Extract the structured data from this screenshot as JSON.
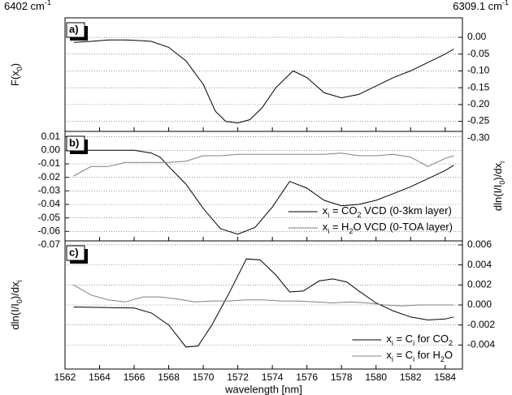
{
  "chart_data": [
    {
      "type": "line",
      "panel_label": "a)",
      "top_left_label": [
        {
          "t": "6402 cm"
        },
        {
          "t": "-1",
          "sup": true
        }
      ],
      "top_right_label": [
        {
          "t": "6309.1 cm"
        },
        {
          "t": "-1",
          "sup": true
        }
      ],
      "ylabel": [
        {
          "t": "F(x"
        },
        {
          "t": "0",
          "sub": true
        },
        {
          "t": ")"
        }
      ],
      "ylabel_side": "left",
      "ytick_side": "right",
      "xlim": [
        1562,
        1585
      ],
      "ylim": [
        -0.28,
        0.058
      ],
      "yticks": [
        {
          "value": 0,
          "label": "0.00"
        },
        {
          "value": -0.05,
          "label": "-0.05"
        },
        {
          "value": -0.1,
          "label": "-0.10"
        },
        {
          "value": -0.15,
          "label": "-0.15"
        },
        {
          "value": -0.2,
          "label": "-0.20"
        },
        {
          "value": -0.25,
          "label": "-0.25"
        },
        {
          "value": -0.3,
          "label": "-0.30"
        }
      ],
      "grid": true,
      "series": [
        {
          "color": "#000000",
          "x": [
            1562.5,
            1563.5,
            1564.5,
            1565.5,
            1566.5,
            1567,
            1568,
            1569,
            1570,
            1570.7,
            1571.3,
            1572,
            1572.7,
            1573.4,
            1574.2,
            1575.2,
            1576,
            1577,
            1578,
            1579,
            1580,
            1581,
            1582,
            1583,
            1584,
            1584.5
          ],
          "values": [
            -0.015,
            -0.012,
            -0.008,
            -0.008,
            -0.01,
            -0.012,
            -0.03,
            -0.07,
            -0.14,
            -0.22,
            -0.25,
            -0.255,
            -0.245,
            -0.21,
            -0.15,
            -0.1,
            -0.12,
            -0.165,
            -0.18,
            -0.17,
            -0.145,
            -0.12,
            -0.1,
            -0.075,
            -0.05,
            -0.035
          ]
        }
      ]
    },
    {
      "type": "line",
      "panel_label": "b)",
      "ylabel": [
        {
          "t": "dln(I/I"
        },
        {
          "t": "0",
          "sub": true
        },
        {
          "t": ")/dx"
        },
        {
          "t": "i",
          "sub": true
        }
      ],
      "ylabel_side": "right",
      "ytick_side": "left",
      "xlim": [
        1562,
        1585
      ],
      "ylim": [
        -0.067,
        0.014
      ],
      "yticks": [
        {
          "value": 0.01,
          "label": "0.01"
        },
        {
          "value": 0,
          "label": "0.00"
        },
        {
          "value": -0.01,
          "label": "-0.01"
        },
        {
          "value": -0.02,
          "label": "-0.02"
        },
        {
          "value": -0.03,
          "label": "-0.03"
        },
        {
          "value": -0.04,
          "label": "-0.04"
        },
        {
          "value": -0.05,
          "label": "-0.05"
        },
        {
          "value": -0.06,
          "label": "-0.06"
        },
        {
          "value": -0.07,
          "label": "-0.07"
        }
      ],
      "grid": true,
      "legend": "lower right",
      "series": [
        {
          "name": [
            {
              "t": "x"
            },
            {
              "t": "i",
              "sub": true
            },
            {
              "t": " = CO"
            },
            {
              "t": "2",
              "sub": true
            },
            {
              "t": " VCD (0-3km layer)"
            }
          ],
          "color": "#000000",
          "x": [
            1562.5,
            1566,
            1567,
            1567.5,
            1568,
            1569,
            1570,
            1571,
            1572,
            1573,
            1574,
            1575,
            1576,
            1577,
            1578,
            1579,
            1580,
            1581,
            1582,
            1583,
            1584,
            1584.5
          ],
          "values": [
            0,
            0,
            -0.002,
            -0.005,
            -0.012,
            -0.025,
            -0.043,
            -0.058,
            -0.062,
            -0.057,
            -0.042,
            -0.023,
            -0.028,
            -0.037,
            -0.041,
            -0.04,
            -0.037,
            -0.032,
            -0.027,
            -0.021,
            -0.015,
            -0.011
          ]
        },
        {
          "name": [
            {
              "t": "x"
            },
            {
              "t": "i",
              "sub": true
            },
            {
              "t": " = H"
            },
            {
              "t": "2",
              "sub": true
            },
            {
              "t": "O VCD (0-TOA layer)"
            }
          ],
          "color": "#808080",
          "x": [
            1562.5,
            1563.5,
            1564.5,
            1565.5,
            1567,
            1568,
            1569,
            1570,
            1571,
            1572,
            1573,
            1574,
            1575,
            1576,
            1577,
            1578,
            1579,
            1580,
            1581,
            1582,
            1583,
            1584,
            1584.5
          ],
          "values": [
            -0.019,
            -0.012,
            -0.012,
            -0.009,
            -0.009,
            -0.009,
            -0.008,
            -0.004,
            -0.004,
            -0.003,
            -0.003,
            -0.003,
            -0.003,
            -0.003,
            -0.003,
            -0.002,
            -0.004,
            -0.004,
            -0.003,
            -0.005,
            -0.012,
            -0.006,
            -0.004
          ]
        }
      ]
    },
    {
      "type": "line",
      "panel_label": "c)",
      "ylabel": [
        {
          "t": "dln(I/I"
        },
        {
          "t": "0",
          "sub": true
        },
        {
          "t": ")/dx"
        },
        {
          "t": "i",
          "sub": true
        }
      ],
      "ylabel_side": "left",
      "ytick_side": "right",
      "xlabel": "wavelength [nm]",
      "xlim": [
        1562,
        1585
      ],
      "ylim": [
        -0.0064,
        0.0064
      ],
      "xticks": [
        1562,
        1564,
        1566,
        1568,
        1570,
        1572,
        1574,
        1576,
        1578,
        1580,
        1582,
        1584
      ],
      "yticks": [
        {
          "value": 0.006,
          "label": "0.006"
        },
        {
          "value": 0.004,
          "label": "0.004"
        },
        {
          "value": 0.002,
          "label": "0.002"
        },
        {
          "value": 0,
          "label": "0.000"
        },
        {
          "value": -0.002,
          "label": "-0.002"
        },
        {
          "value": -0.004,
          "label": "-0.004"
        }
      ],
      "grid": true,
      "legend": "lower right",
      "series": [
        {
          "name": [
            {
              "t": "x"
            },
            {
              "t": "i",
              "sub": true
            },
            {
              "t": " = C"
            },
            {
              "t": "i",
              "sub": true
            },
            {
              "t": " for CO"
            },
            {
              "t": "2",
              "sub": true
            }
          ],
          "color": "#000000",
          "x": [
            1562.5,
            1566,
            1567,
            1568,
            1569,
            1569.7,
            1570.5,
            1571.5,
            1572.5,
            1573.3,
            1574.2,
            1575,
            1575.8,
            1576.7,
            1577.5,
            1578.3,
            1579,
            1580,
            1581,
            1582,
            1583,
            1584,
            1584.5
          ],
          "values": [
            -0.0002,
            -0.0003,
            -0.0008,
            -0.002,
            -0.0042,
            -0.0041,
            -0.002,
            0.0012,
            0.0046,
            0.0045,
            0.003,
            0.0013,
            0.0014,
            0.0024,
            0.0026,
            0.0023,
            0.0014,
            0.0002,
            -0.0006,
            -0.0012,
            -0.0015,
            -0.0014,
            -0.0012
          ]
        },
        {
          "name": [
            {
              "t": "x"
            },
            {
              "t": "i",
              "sub": true
            },
            {
              "t": " = C"
            },
            {
              "t": "i",
              "sub": true
            },
            {
              "t": " for H"
            },
            {
              "t": "2",
              "sub": true
            },
            {
              "t": "O"
            }
          ],
          "color": "#808080",
          "x": [
            1562.5,
            1563.5,
            1564.5,
            1565.5,
            1566.5,
            1567.5,
            1568.5,
            1569.5,
            1570.5,
            1571.5,
            1572.5,
            1573.5,
            1574.5,
            1575.5,
            1576.5,
            1577.5,
            1578.5,
            1579.5,
            1580.5,
            1581.5,
            1582.5,
            1583.5,
            1584.5
          ],
          "values": [
            0.002,
            0.001,
            0.0005,
            0.0003,
            0.0008,
            0.0008,
            0.0006,
            0.0003,
            0.0004,
            0.0004,
            0.0005,
            0.0005,
            0.0004,
            0.0004,
            0.0003,
            0.0002,
            0.0003,
            0.0002,
            0,
            -0.0001,
            0,
            0,
            0
          ]
        }
      ]
    }
  ]
}
